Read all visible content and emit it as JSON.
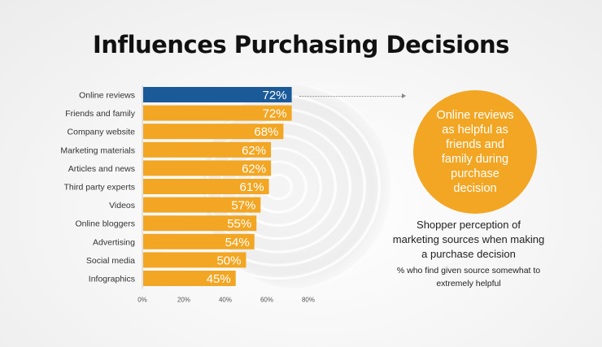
{
  "title": "Influences Purchasing Decisions",
  "callout": {
    "text": "Online reviews as helpful as friends and family during purchase decision"
  },
  "caption": {
    "main": "Shopper perception of marketing sources when making a purchase decision",
    "sub": "% who find given source somewhat to extremely helpful"
  },
  "colors": {
    "highlight_bar": "#1b5a98",
    "bar": "#f2a623",
    "circle": "#f2a623"
  },
  "chart_data": {
    "type": "bar",
    "orientation": "horizontal",
    "title": "Influences Purchasing Decisions",
    "categories": [
      "Online reviews",
      "Friends and family",
      "Company website",
      "Marketing materials",
      "Articles and news",
      "Third party experts",
      "Videos",
      "Online bloggers",
      "Advertising",
      "Social media",
      "Infographics"
    ],
    "values": [
      72,
      72,
      68,
      62,
      62,
      61,
      57,
      55,
      54,
      50,
      45
    ],
    "value_labels": [
      "72%",
      "72%",
      "68%",
      "62%",
      "62%",
      "61%",
      "57%",
      "55%",
      "54%",
      "50%",
      "45%"
    ],
    "highlighted_index": 0,
    "xlim": [
      0,
      80
    ],
    "xticks": [
      0,
      20,
      40,
      60,
      80
    ],
    "xtick_labels": [
      "0%",
      "20%",
      "40%",
      "60%",
      "80%"
    ],
    "xlabel": "",
    "ylabel": "",
    "grid": false,
    "legend": "none"
  }
}
